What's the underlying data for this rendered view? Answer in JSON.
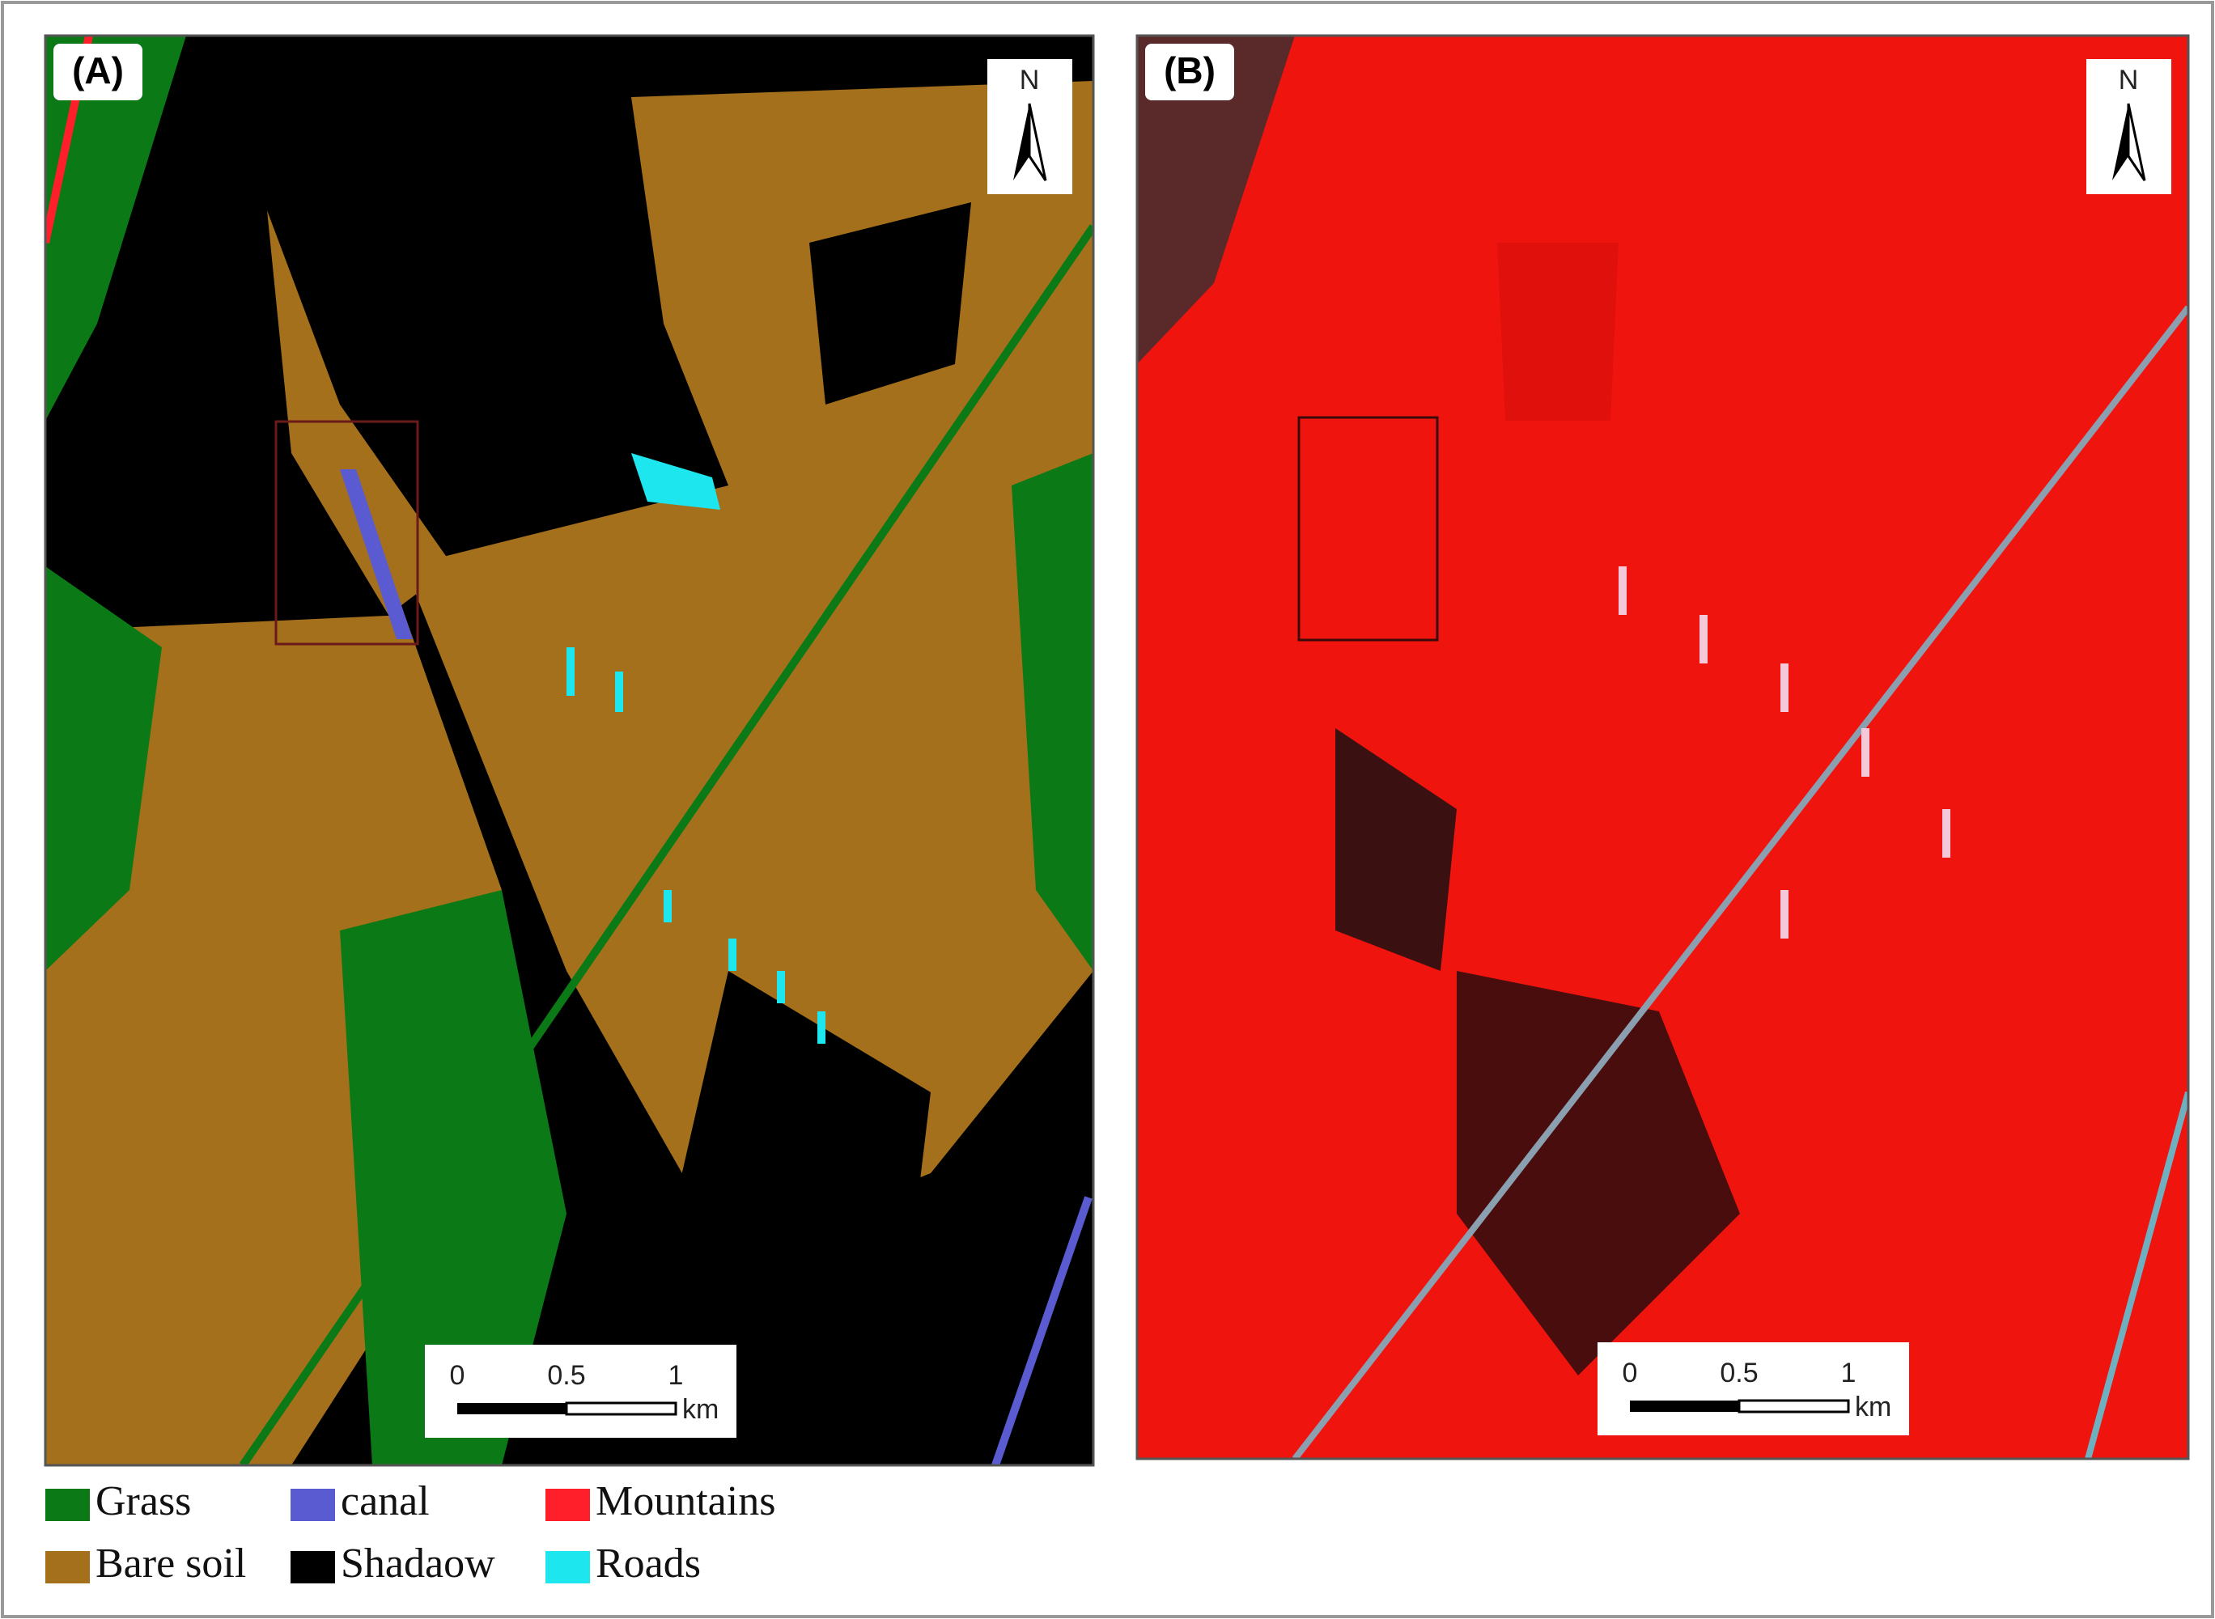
{
  "panels": [
    {
      "label": "(A)",
      "north": "N",
      "scale": {
        "ticks": [
          "0",
          "0.5",
          "1"
        ],
        "unit": "km"
      }
    },
    {
      "label": "(B)",
      "north": "N",
      "scale": {
        "ticks": [
          "0",
          "0.5",
          "1"
        ],
        "unit": "km"
      }
    }
  ],
  "legend": [
    {
      "label": "Grass",
      "color": "#0b7a16"
    },
    {
      "label": "canal",
      "color": "#5b5bd1"
    },
    {
      "label": "Mountains",
      "color": "#ff1f2a"
    },
    {
      "label": "Bare soil",
      "color": "#a5701c"
    },
    {
      "label": "Shadaow",
      "color": "#000000"
    },
    {
      "label": "Roads",
      "color": "#1ee6ee"
    }
  ]
}
